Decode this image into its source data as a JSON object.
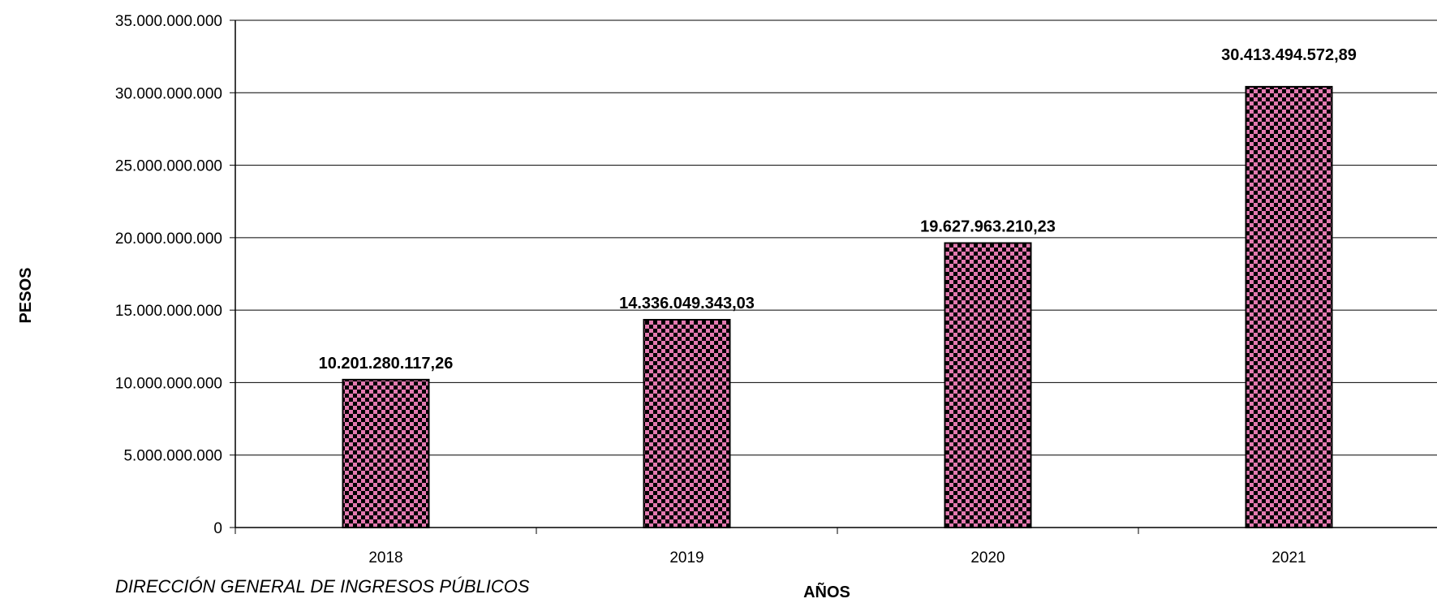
{
  "chart_data": {
    "type": "bar",
    "categories": [
      "2018",
      "2019",
      "2020",
      "2021"
    ],
    "values": [
      10201280117.26,
      14336049343.03,
      19627963210.23,
      30413494572.89
    ],
    "data_labels": [
      "10.201.280.117,26",
      "14.336.049.343,03",
      "19.627.963.210,23",
      "30.413.494.572,89"
    ],
    "y_ticks": [
      0,
      5000000000,
      10000000000,
      15000000000,
      20000000000,
      25000000000,
      30000000000,
      35000000000
    ],
    "y_tick_labels": [
      "0",
      "5.000.000.000",
      "10.000.000.000",
      "15.000.000.000",
      "20.000.000.000",
      "25.000.000.000",
      "30.000.000.000",
      "35.000.000.000"
    ],
    "ylim": [
      0,
      35000000000
    ],
    "xlabel": "AÑOS",
    "ylabel": "PESOS",
    "grid": true,
    "bar_fill_colors": [
      "#e37ab0",
      "#000000"
    ],
    "bar_pattern": "checkerboard"
  },
  "footnote": "DIRECCIÓN GENERAL DE INGRESOS PÚBLICOS"
}
